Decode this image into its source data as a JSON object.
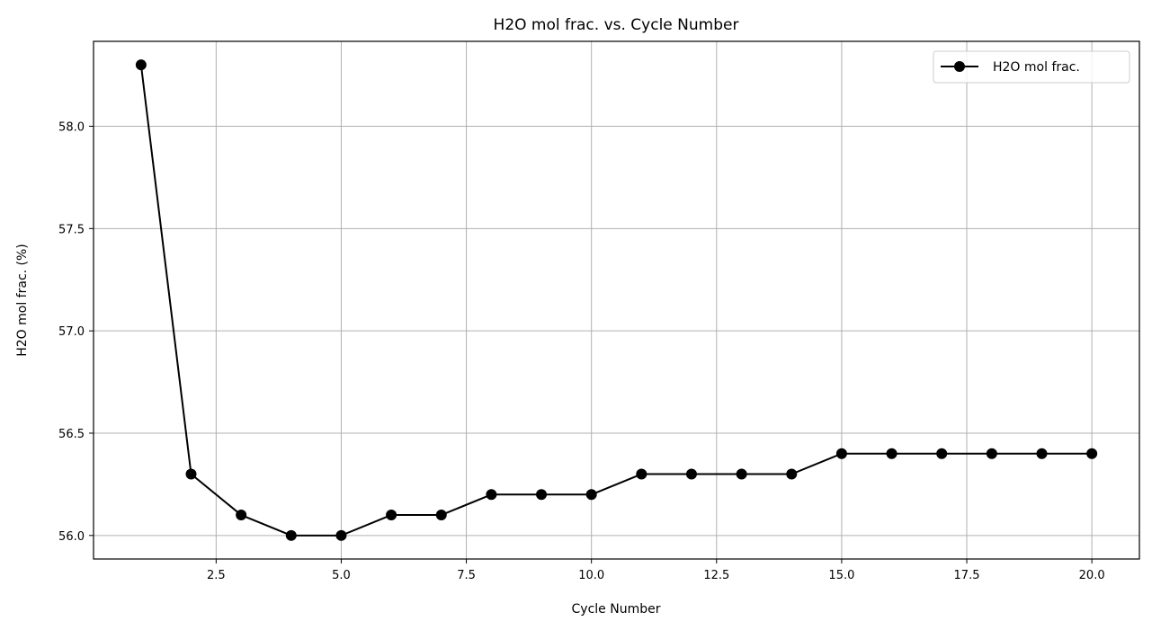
{
  "chart_data": {
    "type": "line",
    "title": "H2O mol frac. vs. Cycle Number",
    "xlabel": "Cycle Number",
    "ylabel": "H2O mol frac. (%)",
    "xlim": [
      0.05,
      20.95
    ],
    "ylim": [
      55.885,
      58.415
    ],
    "xticks": [
      2.5,
      5.0,
      7.5,
      10.0,
      12.5,
      15.0,
      17.5,
      20.0
    ],
    "xtick_labels": [
      "2.5",
      "5.0",
      "7.5",
      "10.0",
      "12.5",
      "15.0",
      "17.5",
      "20.0"
    ],
    "yticks": [
      56.0,
      56.5,
      57.0,
      57.5,
      58.0
    ],
    "ytick_labels": [
      "56.0",
      "56.5",
      "57.0",
      "57.5",
      "58.0"
    ],
    "grid": true,
    "legend": "top-right",
    "series": [
      {
        "name": "H2O mol frac.",
        "color": "#000000",
        "marker": "circle",
        "x": [
          1,
          2,
          3,
          4,
          5,
          6,
          7,
          8,
          9,
          10,
          11,
          12,
          13,
          14,
          15,
          16,
          17,
          18,
          19,
          20
        ],
        "y": [
          58.3,
          56.3,
          56.1,
          56.0,
          56.0,
          56.1,
          56.1,
          56.2,
          56.2,
          56.2,
          56.3,
          56.3,
          56.3,
          56.3,
          56.4,
          56.4,
          56.4,
          56.4,
          56.4,
          56.4
        ]
      }
    ]
  }
}
